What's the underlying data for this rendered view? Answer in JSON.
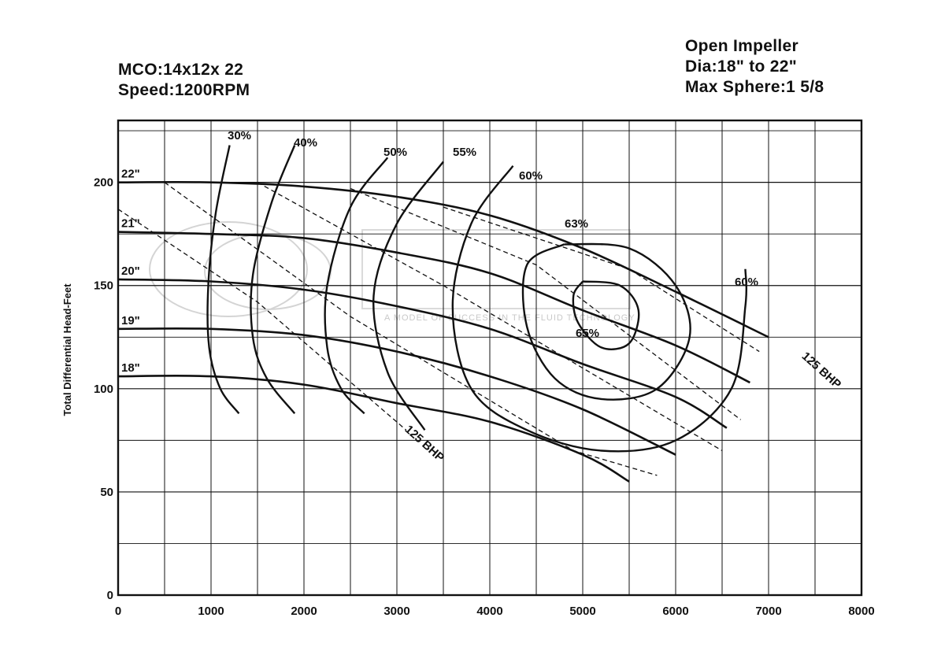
{
  "header": {
    "model": "MCO:14x12x 22",
    "speed": "Speed:1200RPM",
    "impeller": "Open Impeller",
    "dia": "Dia:18\" to 22\"",
    "sphere": "Max Sphere:1  5/8"
  },
  "chart_data": {
    "type": "line",
    "title": "",
    "xlabel": "",
    "ylabel": "Total Differential Head-Feet",
    "xlim": [
      0,
      8000
    ],
    "ylim": [
      0,
      230
    ],
    "grid": true,
    "x_ticks": [
      0,
      1000,
      2000,
      3000,
      4000,
      5000,
      6000,
      7000,
      8000
    ],
    "y_ticks": [
      0,
      50,
      100,
      150,
      200
    ],
    "watermark": "A MODEL OF SUCCESS IN THE FLUID TECHNOLOGY",
    "impeller_curves": [
      {
        "label": "22\"",
        "points": [
          [
            0,
            200
          ],
          [
            1000,
            200
          ],
          [
            2000,
            198
          ],
          [
            3000,
            193
          ],
          [
            4000,
            184
          ],
          [
            5000,
            168
          ],
          [
            6000,
            147
          ],
          [
            7000,
            125
          ]
        ]
      },
      {
        "label": "21\"",
        "points": [
          [
            0,
            176
          ],
          [
            1000,
            175
          ],
          [
            2000,
            173
          ],
          [
            3000,
            166
          ],
          [
            4000,
            156
          ],
          [
            5000,
            138
          ],
          [
            6000,
            121
          ],
          [
            6800,
            103
          ]
        ]
      },
      {
        "label": "20\"",
        "points": [
          [
            0,
            153
          ],
          [
            1000,
            152
          ],
          [
            2000,
            148
          ],
          [
            3000,
            140
          ],
          [
            4000,
            129
          ],
          [
            5000,
            112
          ],
          [
            6000,
            96
          ],
          [
            6550,
            81
          ]
        ]
      },
      {
        "label": "19\"",
        "points": [
          [
            0,
            129
          ],
          [
            1000,
            129
          ],
          [
            2000,
            126
          ],
          [
            3000,
            118
          ],
          [
            4000,
            106
          ],
          [
            5000,
            90
          ],
          [
            6000,
            68
          ]
        ]
      },
      {
        "label": "18\"",
        "points": [
          [
            0,
            106
          ],
          [
            1000,
            106
          ],
          [
            2000,
            102
          ],
          [
            3000,
            93
          ],
          [
            4000,
            84
          ],
          [
            5000,
            68
          ],
          [
            5500,
            55
          ]
        ]
      }
    ],
    "efficiency_curves": [
      {
        "label": "30%",
        "points": [
          [
            1200,
            218
          ],
          [
            1050,
            185
          ],
          [
            970,
            150
          ],
          [
            980,
            120
          ],
          [
            1100,
            100
          ],
          [
            1300,
            88
          ]
        ]
      },
      {
        "label": "40%",
        "points": [
          [
            1900,
            218
          ],
          [
            1650,
            190
          ],
          [
            1450,
            155
          ],
          [
            1450,
            125
          ],
          [
            1600,
            105
          ],
          [
            1900,
            88
          ]
        ]
      },
      {
        "label": "50%",
        "points": [
          [
            2900,
            212
          ],
          [
            2500,
            188
          ],
          [
            2250,
            150
          ],
          [
            2250,
            120
          ],
          [
            2400,
            100
          ],
          [
            2650,
            88
          ]
        ]
      },
      {
        "label": "55%",
        "points": [
          [
            3500,
            210
          ],
          [
            3000,
            180
          ],
          [
            2750,
            145
          ],
          [
            2900,
            108
          ],
          [
            3300,
            80
          ]
        ]
      },
      {
        "label": "60%",
        "points": [
          [
            4250,
            208
          ],
          [
            3800,
            180
          ],
          [
            3600,
            140
          ],
          [
            3800,
            100
          ],
          [
            4400,
            80
          ],
          [
            5200,
            70
          ],
          [
            6000,
            75
          ],
          [
            6600,
            100
          ],
          [
            6750,
            140
          ],
          [
            6750,
            158
          ]
        ]
      },
      {
        "label": "63%",
        "points": [
          [
            4800,
            170
          ],
          [
            4400,
            160
          ],
          [
            4400,
            130
          ],
          [
            4700,
            105
          ],
          [
            5200,
            95
          ],
          [
            5800,
            100
          ],
          [
            6150,
            125
          ],
          [
            6000,
            150
          ],
          [
            5500,
            168
          ],
          [
            4800,
            170
          ]
        ]
      },
      {
        "label": "65%",
        "points": [
          [
            5000,
            152
          ],
          [
            4900,
            145
          ],
          [
            4950,
            132
          ],
          [
            5200,
            120
          ],
          [
            5500,
            122
          ],
          [
            5600,
            138
          ],
          [
            5400,
            150
          ],
          [
            5000,
            152
          ]
        ]
      }
    ],
    "bhp_lines": [
      {
        "label": "125 BHP",
        "points": [
          [
            0,
            187
          ],
          [
            1500,
            142
          ],
          [
            3100,
            80
          ]
        ]
      },
      {
        "label": "",
        "points": [
          [
            500,
            200
          ],
          [
            2500,
            135
          ],
          [
            4900,
            70
          ],
          [
            5800,
            58
          ]
        ]
      },
      {
        "label": "",
        "points": [
          [
            1500,
            200
          ],
          [
            3500,
            150
          ],
          [
            6500,
            70
          ]
        ]
      },
      {
        "label": "",
        "points": [
          [
            2500,
            197
          ],
          [
            4500,
            160
          ],
          [
            6700,
            85
          ]
        ]
      },
      {
        "label": "125 BHP",
        "points": [
          [
            3500,
            188
          ],
          [
            5500,
            158
          ],
          [
            6900,
            118
          ]
        ]
      }
    ]
  }
}
